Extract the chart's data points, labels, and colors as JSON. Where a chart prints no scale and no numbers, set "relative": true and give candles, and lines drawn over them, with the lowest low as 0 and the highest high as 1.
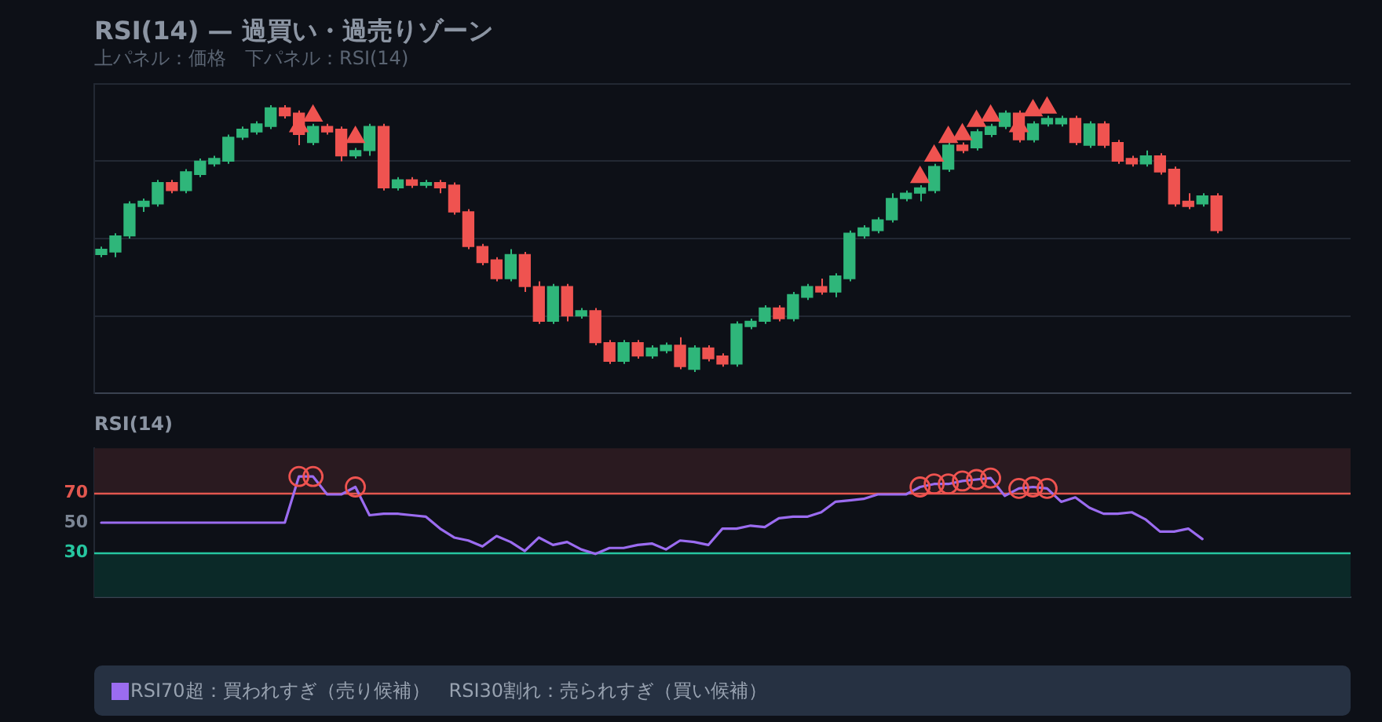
{
  "chart_data": [
    {
      "type": "candlestick",
      "title": "RSI(14) — 過買い・過売りゾーン",
      "subtitle": "上パネル：価格　下パネル：RSI(14)",
      "relative": true,
      "grid": "y",
      "categories": [
        null,
        null,
        null,
        null,
        null,
        null,
        null,
        null,
        null,
        null,
        null,
        null,
        null,
        null,
        null,
        null,
        null,
        null,
        null,
        null,
        null,
        null,
        null,
        null,
        null,
        null,
        null,
        null,
        null,
        null,
        null,
        null,
        null,
        null,
        null,
        null,
        null,
        null,
        null,
        null,
        null,
        null,
        null,
        null,
        null,
        null,
        null,
        null,
        null,
        null,
        null,
        null,
        null,
        null,
        null,
        null,
        null,
        null,
        null,
        null,
        null,
        null,
        null,
        null,
        null,
        null,
        null,
        null,
        null,
        null,
        null,
        null,
        null,
        null,
        null,
        null,
        null,
        null,
        null,
        null,
        null,
        null,
        null,
        null,
        null,
        null,
        null,
        null,
        null
      ],
      "ohlc": [
        [
          0.44,
          0.47,
          0.43,
          0.46
        ],
        [
          0.45,
          0.52,
          0.43,
          0.51
        ],
        [
          0.51,
          0.64,
          0.5,
          0.63
        ],
        [
          0.62,
          0.65,
          0.6,
          0.64
        ],
        [
          0.63,
          0.72,
          0.62,
          0.71
        ],
        [
          0.71,
          0.72,
          0.67,
          0.68
        ],
        [
          0.68,
          0.76,
          0.67,
          0.75
        ],
        [
          0.74,
          0.8,
          0.73,
          0.79
        ],
        [
          0.78,
          0.81,
          0.77,
          0.8
        ],
        [
          0.79,
          0.89,
          0.78,
          0.88
        ],
        [
          0.88,
          0.92,
          0.87,
          0.91
        ],
        [
          0.9,
          0.94,
          0.89,
          0.93
        ],
        [
          0.92,
          1.0,
          0.91,
          0.99
        ],
        [
          0.99,
          1.0,
          0.95,
          0.96
        ],
        [
          0.97,
          0.98,
          0.85,
          0.89
        ],
        [
          0.86,
          0.93,
          0.85,
          0.92
        ],
        [
          0.92,
          0.93,
          0.89,
          0.9
        ],
        [
          0.91,
          0.92,
          0.79,
          0.81
        ],
        [
          0.81,
          0.84,
          0.8,
          0.83
        ],
        [
          0.83,
          0.93,
          0.81,
          0.92
        ],
        [
          0.92,
          0.93,
          0.68,
          0.69
        ],
        [
          0.69,
          0.73,
          0.68,
          0.72
        ],
        [
          0.72,
          0.73,
          0.69,
          0.7
        ],
        [
          0.7,
          0.72,
          0.69,
          0.71
        ],
        [
          0.71,
          0.72,
          0.67,
          0.69
        ],
        [
          0.7,
          0.71,
          0.59,
          0.6
        ],
        [
          0.6,
          0.61,
          0.46,
          0.47
        ],
        [
          0.47,
          0.48,
          0.4,
          0.41
        ],
        [
          0.42,
          0.43,
          0.34,
          0.35
        ],
        [
          0.35,
          0.46,
          0.34,
          0.44
        ],
        [
          0.44,
          0.45,
          0.3,
          0.32
        ],
        [
          0.32,
          0.34,
          0.18,
          0.19
        ],
        [
          0.19,
          0.33,
          0.18,
          0.32
        ],
        [
          0.32,
          0.33,
          0.19,
          0.21
        ],
        [
          0.21,
          0.24,
          0.2,
          0.23
        ],
        [
          0.23,
          0.24,
          0.1,
          0.11
        ],
        [
          0.11,
          0.12,
          0.03,
          0.04
        ],
        [
          0.04,
          0.12,
          0.03,
          0.11
        ],
        [
          0.11,
          0.12,
          0.05,
          0.06
        ],
        [
          0.06,
          0.1,
          0.05,
          0.09
        ],
        [
          0.08,
          0.11,
          0.07,
          0.1
        ],
        [
          0.1,
          0.13,
          0.01,
          0.02
        ],
        [
          0.01,
          0.1,
          0,
          0.09
        ],
        [
          0.09,
          0.1,
          0.04,
          0.05
        ],
        [
          0.06,
          0.07,
          0.02,
          0.03
        ],
        [
          0.03,
          0.19,
          0.02,
          0.18
        ],
        [
          0.17,
          0.2,
          0.16,
          0.19
        ],
        [
          0.19,
          0.25,
          0.18,
          0.24
        ],
        [
          0.24,
          0.25,
          0.19,
          0.2
        ],
        [
          0.2,
          0.3,
          0.19,
          0.29
        ],
        [
          0.28,
          0.33,
          0.27,
          0.32
        ],
        [
          0.32,
          0.35,
          0.29,
          0.3
        ],
        [
          0.3,
          0.37,
          0.28,
          0.36
        ],
        [
          0.35,
          0.53,
          0.34,
          0.52
        ],
        [
          0.51,
          0.55,
          0.5,
          0.54
        ],
        [
          0.53,
          0.58,
          0.52,
          0.57
        ],
        [
          0.57,
          0.67,
          0.56,
          0.65
        ],
        [
          0.65,
          0.68,
          0.64,
          0.67
        ],
        [
          0.67,
          0.7,
          0.64,
          0.69
        ],
        [
          0.68,
          0.78,
          0.67,
          0.77
        ],
        [
          0.76,
          0.86,
          0.75,
          0.85
        ],
        [
          0.85,
          0.86,
          0.82,
          0.83
        ],
        [
          0.84,
          0.91,
          0.83,
          0.9
        ],
        [
          0.89,
          0.93,
          0.88,
          0.92
        ],
        [
          0.92,
          0.98,
          0.91,
          0.97
        ],
        [
          0.97,
          0.98,
          0.86,
          0.87
        ],
        [
          0.87,
          0.94,
          0.86,
          0.93
        ],
        [
          0.93,
          0.96,
          0.92,
          0.95
        ],
        [
          0.93,
          0.96,
          0.92,
          0.95
        ],
        [
          0.95,
          0.96,
          0.85,
          0.86
        ],
        [
          0.85,
          0.94,
          0.84,
          0.93
        ],
        [
          0.93,
          0.94,
          0.84,
          0.85
        ],
        [
          0.86,
          0.87,
          0.78,
          0.79
        ],
        [
          0.8,
          0.81,
          0.77,
          0.78
        ],
        [
          0.78,
          0.83,
          0.77,
          0.81
        ],
        [
          0.81,
          0.82,
          0.74,
          0.75
        ],
        [
          0.76,
          0.77,
          0.62,
          0.63
        ],
        [
          0.64,
          0.67,
          0.61,
          0.62
        ],
        [
          0.63,
          0.67,
          0.62,
          0.66
        ],
        [
          0.66,
          0.67,
          0.52,
          0.53
        ],
        null,
        null,
        null,
        null,
        null,
        null,
        null,
        null,
        null
      ],
      "colors": [
        "#2fb67a",
        "#2fb67a",
        "#2fb67a",
        "#2fb67a",
        "#2fb67a",
        "#ef5350",
        "#2fb67a",
        "#2fb67a",
        "#2fb67a",
        "#2fb67a",
        "#2fb67a",
        "#2fb67a",
        "#2fb67a",
        "#ef5350",
        "#ef5350",
        "#2fb67a",
        "#ef5350",
        "#ef5350",
        "#2fb67a",
        "#2fb67a",
        "#ef5350",
        "#2fb67a",
        "#ef5350",
        "#2fb67a",
        "#ef5350",
        "#ef5350",
        "#ef5350",
        "#ef5350",
        "#ef5350",
        "#2fb67a",
        "#ef5350",
        "#ef5350",
        "#2fb67a",
        "#ef5350",
        "#2fb67a",
        "#ef5350",
        "#ef5350",
        "#2fb67a",
        "#ef5350",
        "#2fb67a",
        "#2fb67a",
        "#ef5350",
        "#2fb67a",
        "#ef5350",
        "#ef5350",
        "#2fb67a",
        "#2fb67a",
        "#2fb67a",
        "#ef5350",
        "#2fb67a",
        "#2fb67a",
        "#ef5350",
        "#2fb67a",
        "#2fb67a",
        "#2fb67a",
        "#2fb67a",
        "#2fb67a",
        "#2fb67a",
        "#2fb67a",
        "#2fb67a",
        "#2fb67a",
        "#ef5350",
        "#2fb67a",
        "#2fb67a",
        "#2fb67a",
        "#ef5350",
        "#2fb67a",
        "#2fb67a",
        "#2fb67a",
        "#ef5350",
        "#2fb67a",
        "#ef5350",
        "#ef5350",
        "#ef5350",
        "#2fb67a",
        "#ef5350",
        "#ef5350",
        "#ef5350",
        "#2fb67a",
        "#ef5350",
        null,
        null,
        null,
        null,
        null,
        null,
        null,
        null,
        null
      ],
      "series": [
        {
          "type": "scatter",
          "marker": "triangle",
          "color": "#ef5350",
          "values": [
            null,
            null,
            null,
            null,
            null,
            null,
            null,
            null,
            null,
            null,
            null,
            null,
            null,
            null,
            0.92,
            0.96,
            null,
            null,
            0.88,
            null,
            null,
            null,
            null,
            null,
            null,
            null,
            null,
            null,
            null,
            null,
            null,
            null,
            null,
            null,
            null,
            null,
            null,
            null,
            null,
            null,
            null,
            null,
            null,
            null,
            null,
            null,
            null,
            null,
            null,
            null,
            null,
            null,
            null,
            null,
            null,
            null,
            null,
            null,
            0.73,
            0.81,
            0.88,
            0.89,
            0.94,
            0.96,
            null,
            0.92,
            0.98,
            0.99,
            null,
            null,
            null,
            null,
            null,
            null,
            null,
            null,
            null,
            null,
            null,
            null,
            null,
            null,
            null,
            null,
            null,
            null,
            null,
            null,
            null
          ]
        }
      ]
    },
    {
      "type": "line",
      "title": "RSI(14)",
      "legend": "bottom",
      "categories": [
        null,
        null,
        null,
        null,
        null,
        null,
        null,
        null,
        null,
        null,
        null,
        null,
        null,
        null,
        null,
        null,
        null,
        null,
        null,
        null,
        null,
        null,
        null,
        null,
        null,
        null,
        null,
        null,
        null,
        null,
        null,
        null,
        null,
        null,
        null,
        null,
        null,
        null,
        null,
        null,
        null,
        null,
        null,
        null,
        null,
        null,
        null,
        null,
        null,
        null,
        null,
        null,
        null,
        null,
        null,
        null,
        null,
        null,
        null,
        null,
        null,
        null,
        null,
        null,
        null,
        null,
        null,
        null,
        null,
        null,
        null,
        null,
        null,
        null,
        null,
        null,
        null,
        null,
        null,
        null,
        null,
        null,
        null,
        null,
        null,
        null,
        null,
        null,
        null
      ],
      "ylim": [
        0,
        100
      ],
      "yticks": [
        30,
        50,
        70
      ],
      "bands": [
        {
          "axis": "y",
          "from": 70,
          "to": 100,
          "color": "#2a1a20"
        },
        {
          "axis": "y",
          "from": 0,
          "to": 30,
          "color": "#0b2928"
        }
      ],
      "ref_lines": [
        {
          "axis": "y",
          "value": 70,
          "color": "#e2574f"
        },
        {
          "axis": "y",
          "value": 30,
          "color": "#26c6a0"
        }
      ],
      "series": [
        {
          "name": "RSI70超：買われすぎ（売り候補）　RSI30割れ：売られすぎ（買い候補）",
          "color": "#9b6cf0",
          "marker": "none",
          "values": [
            50,
            50,
            50,
            50,
            50,
            50,
            50,
            50,
            50,
            50,
            50,
            50,
            50,
            50,
            81,
            81,
            69,
            69,
            74,
            55,
            56,
            56,
            55,
            54,
            46,
            40,
            38,
            34,
            41,
            37,
            31,
            40,
            35,
            37,
            32,
            29,
            33,
            33,
            35,
            36,
            32,
            38,
            37,
            35,
            46,
            46,
            48,
            47,
            53,
            54,
            54,
            57,
            64,
            65,
            66,
            69,
            69,
            69,
            74,
            76,
            76,
            78,
            79,
            80,
            68,
            73,
            74,
            73,
            64,
            67,
            60,
            56,
            56,
            57,
            52,
            44,
            44,
            46,
            39,
            null,
            null,
            null,
            null,
            null,
            null,
            null,
            null,
            null,
            null
          ]
        },
        {
          "type": "scatter",
          "marker": "circle",
          "color": "#ef5350",
          "values": [
            null,
            null,
            null,
            null,
            null,
            null,
            null,
            null,
            null,
            null,
            null,
            null,
            null,
            null,
            81,
            81,
            null,
            null,
            74,
            null,
            null,
            null,
            null,
            null,
            null,
            null,
            null,
            null,
            null,
            null,
            null,
            null,
            null,
            null,
            null,
            null,
            null,
            null,
            null,
            null,
            null,
            null,
            null,
            null,
            null,
            null,
            null,
            null,
            null,
            null,
            null,
            null,
            null,
            null,
            null,
            null,
            null,
            null,
            74,
            76,
            76,
            78,
            79,
            80,
            null,
            73,
            74,
            73,
            null,
            null,
            null,
            null,
            null,
            null,
            null,
            null,
            null,
            null,
            null,
            null,
            null,
            null,
            null,
            null,
            null,
            null,
            null,
            null,
            null
          ]
        }
      ]
    }
  ]
}
